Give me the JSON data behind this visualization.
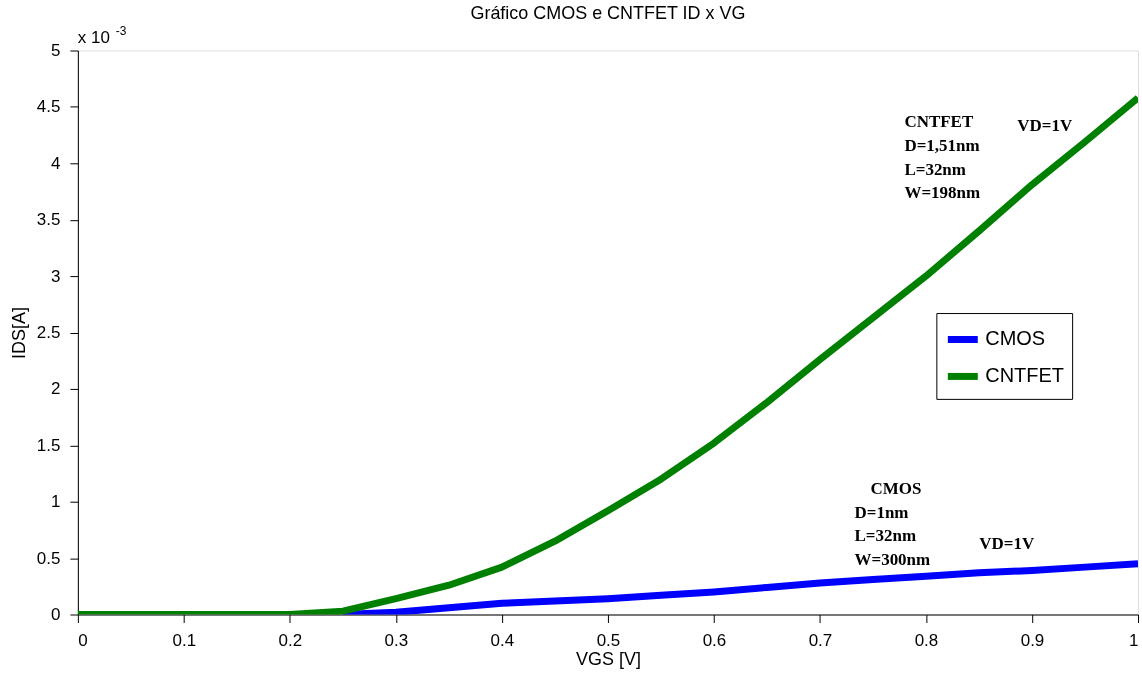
{
  "chart_data": {
    "type": "line",
    "title": "Gráfico CMOS e CNTFET ID x VG",
    "xlabel": "VGS [V]",
    "ylabel": "IDS[A]",
    "x": [
      0,
      0.1,
      0.2,
      0.25,
      0.3,
      0.35,
      0.4,
      0.45,
      0.5,
      0.55,
      0.6,
      0.65,
      0.7,
      0.75,
      0.8,
      0.85,
      0.9,
      0.95,
      1.0
    ],
    "series": [
      {
        "name": "CMOS",
        "color": "#0000ff",
        "values": [
          null,
          null,
          null,
          0,
          0.02,
          0.06,
          0.1,
          0.12,
          0.14,
          0.17,
          0.2,
          0.24,
          0.28,
          0.31,
          0.34,
          0.37,
          0.39,
          0.42,
          0.45
        ]
      },
      {
        "name": "CNTFET",
        "color": "#008000",
        "values": [
          0,
          0,
          0,
          0.03,
          0.14,
          0.26,
          0.42,
          0.65,
          0.92,
          1.2,
          1.52,
          1.88,
          2.26,
          2.63,
          3.0,
          3.4,
          3.81,
          4.19,
          4.58
        ]
      }
    ],
    "xlim": [
      0,
      1
    ],
    "xticks": [
      0,
      0.1,
      0.2,
      0.3,
      0.4,
      0.5,
      0.6,
      0.7,
      0.8,
      0.9,
      1
    ],
    "ylim": [
      0,
      5
    ],
    "yticks": [
      0,
      0.5,
      1,
      1.5,
      2,
      2.5,
      3,
      3.5,
      4,
      4.5,
      5
    ],
    "legend": "right",
    "grid": false,
    "marker": "none",
    "line_style": "solid",
    "annotations": [
      "x 10$^{-3}$",
      "CNTFET",
      "D=1,51nm",
      "L=32nm",
      "W=198nm",
      "VD=1V",
      "CMOS",
      "D=1nm",
      "L=32nm",
      "W=300nm",
      "VD=1V"
    ]
  }
}
